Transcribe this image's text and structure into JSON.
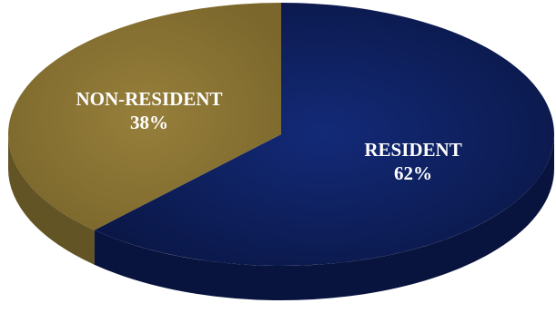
{
  "chart_data": {
    "type": "pie",
    "style": "3d",
    "title": "",
    "slices": [
      {
        "label": "RESIDENT",
        "value": 62,
        "display": "62%",
        "color": "#0c1c56"
      },
      {
        "label": "NON-RESIDENT",
        "value": 38,
        "display": "38%",
        "color": "#8a7434"
      }
    ]
  }
}
